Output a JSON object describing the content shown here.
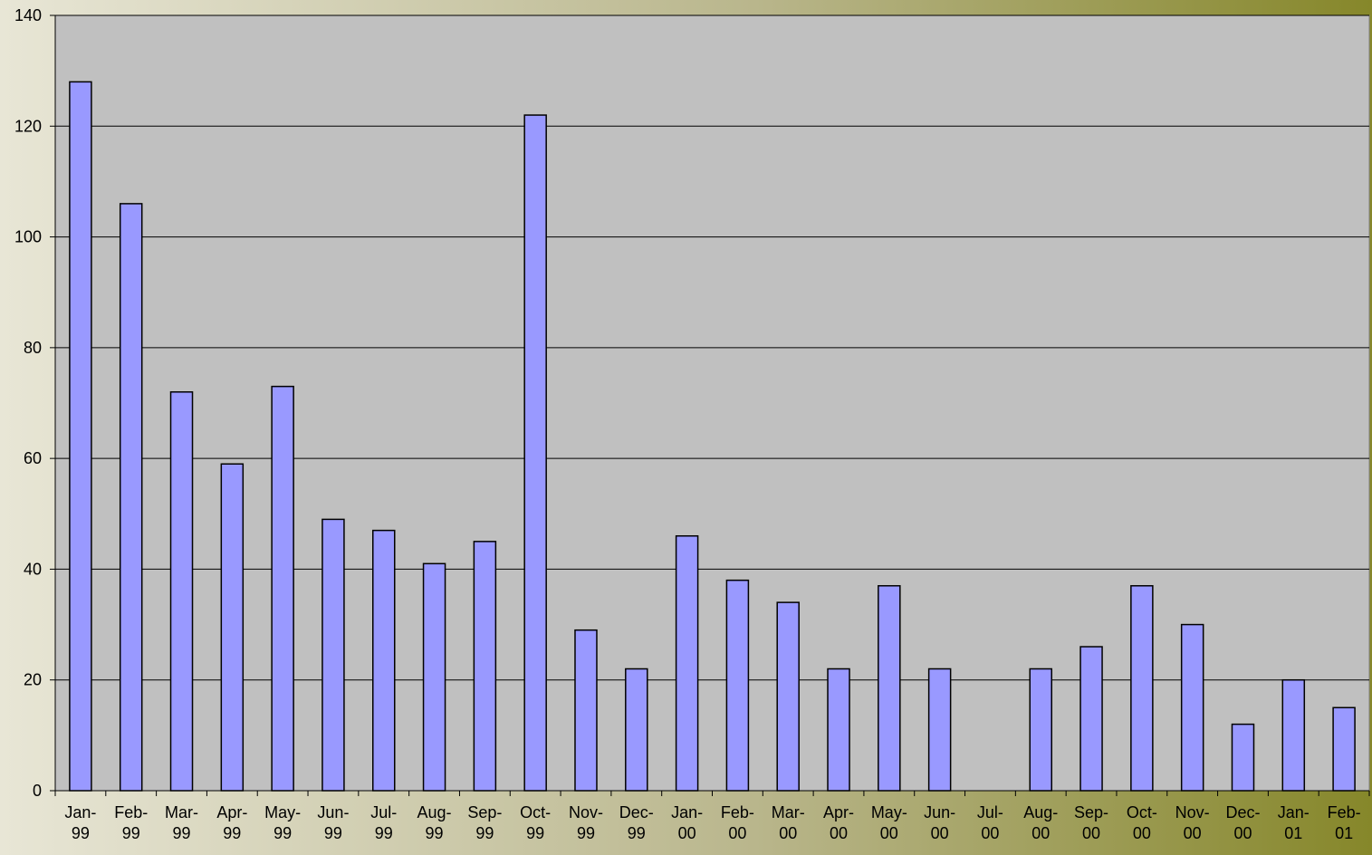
{
  "chart_data": {
    "type": "bar",
    "categories": [
      "Jan-99",
      "Feb-99",
      "Mar-99",
      "Apr-99",
      "May-99",
      "Jun-99",
      "Jul-99",
      "Aug-99",
      "Sep-99",
      "Oct-99",
      "Nov-99",
      "Dec-99",
      "Jan-00",
      "Feb-00",
      "Mar-00",
      "Apr-00",
      "May-00",
      "Jun-00",
      "Jul-00",
      "Aug-00",
      "Sep-00",
      "Oct-00",
      "Nov-00",
      "Dec-00",
      "Jan-01",
      "Feb-01"
    ],
    "values": [
      128,
      106,
      72,
      59,
      73,
      49,
      47,
      41,
      45,
      122,
      29,
      22,
      46,
      38,
      34,
      22,
      37,
      22,
      0,
      22,
      26,
      37,
      30,
      12,
      20,
      15
    ],
    "color": "#9999ff",
    "ylim": [
      0,
      140
    ],
    "yticks": [
      0,
      20,
      40,
      60,
      80,
      100,
      120,
      140
    ],
    "grid": true
  }
}
